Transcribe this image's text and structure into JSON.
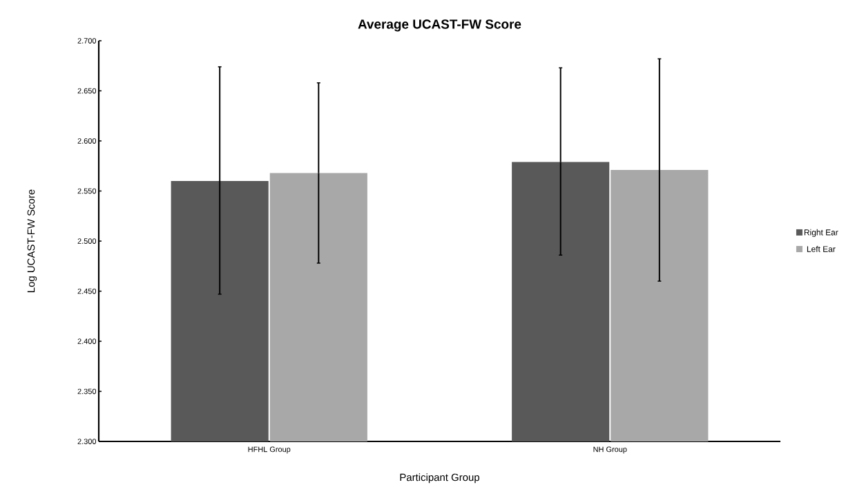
{
  "chart_data": {
    "type": "bar",
    "title": "Average UCAST-FW Score",
    "xlabel": "Participant Group",
    "ylabel": "Log UCAST-FW Score",
    "categories": [
      "HFHL Group",
      "NH Group"
    ],
    "series": [
      {
        "name": "Right Ear",
        "color": "#595959",
        "values": [
          2.56,
          2.579
        ],
        "errors": [
          [
            2.447,
            2.674
          ],
          [
            2.486,
            2.673
          ]
        ]
      },
      {
        "name": "Left Ear",
        "color": "#a8a8a8",
        "values": [
          2.568,
          2.571
        ],
        "errors": [
          [
            2.478,
            2.658
          ],
          [
            2.46,
            2.682
          ]
        ]
      }
    ],
    "ylim": [
      2.3,
      2.7
    ],
    "yticks": [
      {
        "value": 2.3,
        "label": "2.300"
      },
      {
        "value": 2.35,
        "label": "2.350"
      },
      {
        "value": 2.4,
        "label": "2.400"
      },
      {
        "value": 2.45,
        "label": "2.450"
      },
      {
        "value": 2.5,
        "label": "2.500"
      },
      {
        "value": 2.55,
        "label": "2.550"
      },
      {
        "value": 2.6,
        "label": "2.600"
      },
      {
        "value": 2.65,
        "label": "2.650"
      },
      {
        "value": 2.7,
        "label": "2.700"
      }
    ],
    "grid": false,
    "legend": "right"
  }
}
